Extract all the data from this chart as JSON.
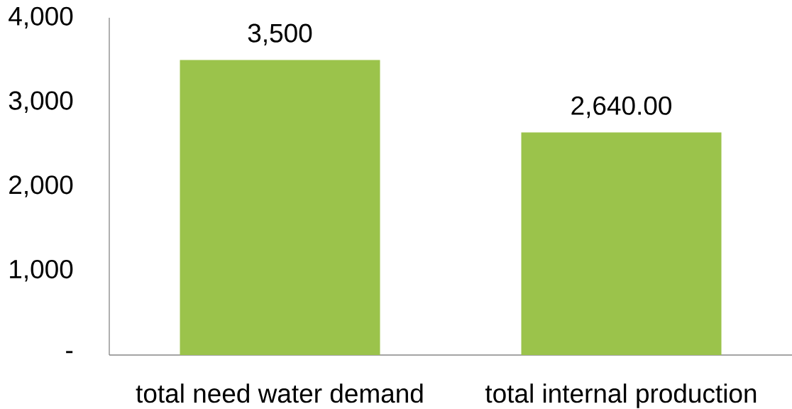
{
  "chart_data": {
    "type": "bar",
    "categories": [
      "total need water demand",
      "total internal production"
    ],
    "values": [
      3500,
      2640
    ],
    "value_labels": [
      "3,500",
      "2,640.00"
    ],
    "color": "#9bc34b",
    "ylim": [
      0,
      4000
    ],
    "yticks": [
      {
        "value": 0,
        "label": "-"
      },
      {
        "value": 1000,
        "label": "1,000"
      },
      {
        "value": 2000,
        "label": "2,000"
      },
      {
        "value": 3000,
        "label": "3,000"
      },
      {
        "value": 4000,
        "label": "4,000"
      }
    ]
  }
}
